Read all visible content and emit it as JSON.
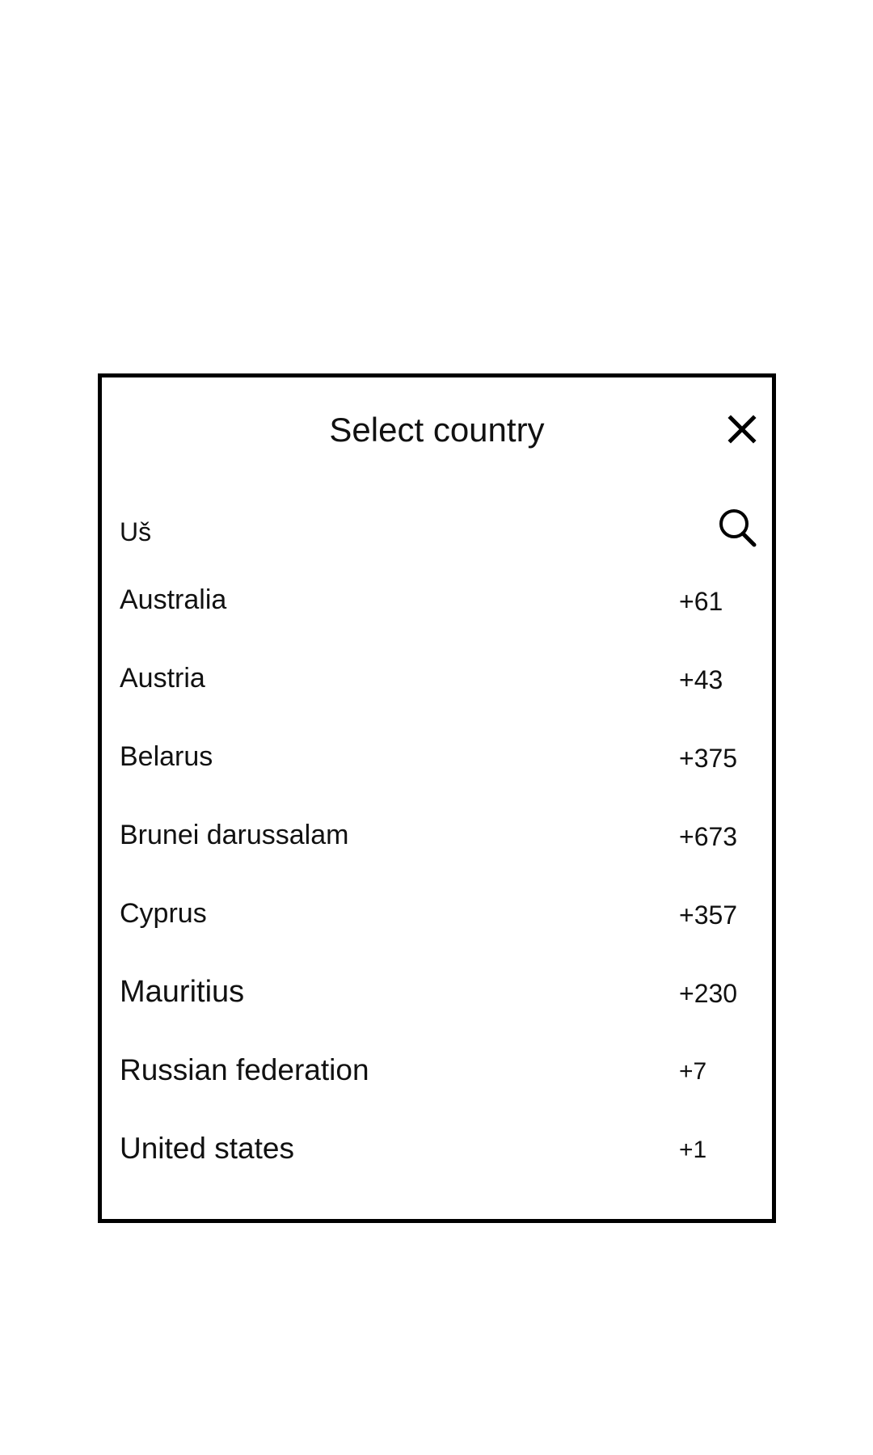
{
  "dialog": {
    "title": "Select country",
    "close_icon": "close-icon",
    "search": {
      "value": "Uš",
      "placeholder": "",
      "icon": "search-icon"
    },
    "countries": [
      {
        "name": "Australia",
        "code": "+61"
      },
      {
        "name": "Austria",
        "code": "+43"
      },
      {
        "name": "Belarus",
        "code": "+375"
      },
      {
        "name": "Brunei darussalam",
        "code": "+673"
      },
      {
        "name": "Cyprus",
        "code": "+357"
      },
      {
        "name": "Mauritius",
        "code": "+230"
      },
      {
        "name": "Russian federation",
        "code": "+7"
      },
      {
        "name": "United states",
        "code": "+1"
      }
    ]
  },
  "colors": {
    "border": "#000000",
    "text": "#111111",
    "background": "#ffffff"
  }
}
